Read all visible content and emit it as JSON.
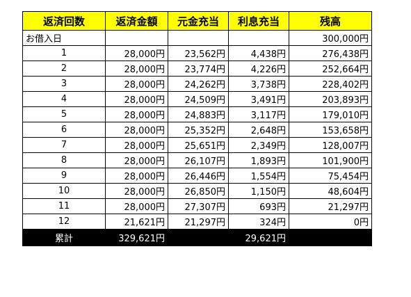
{
  "headers": {
    "count": "返済回数",
    "payment": "返済金額",
    "principal": "元金充当",
    "interest": "利息充当",
    "balance": "残高"
  },
  "borrow_row": {
    "label": "お借入日",
    "payment": "",
    "principal": "",
    "interest": "",
    "balance": "300,000円"
  },
  "rows": [
    {
      "n": "1",
      "payment": "28,000円",
      "principal": "23,562円",
      "interest": "4,438円",
      "balance": "276,438円"
    },
    {
      "n": "2",
      "payment": "28,000円",
      "principal": "23,774円",
      "interest": "4,226円",
      "balance": "252,664円"
    },
    {
      "n": "3",
      "payment": "28,000円",
      "principal": "24,262円",
      "interest": "3,738円",
      "balance": "228,402円"
    },
    {
      "n": "4",
      "payment": "28,000円",
      "principal": "24,509円",
      "interest": "3,491円",
      "balance": "203,893円"
    },
    {
      "n": "5",
      "payment": "28,000円",
      "principal": "24,883円",
      "interest": "3,117円",
      "balance": "179,010円"
    },
    {
      "n": "6",
      "payment": "28,000円",
      "principal": "25,352円",
      "interest": "2,648円",
      "balance": "153,658円"
    },
    {
      "n": "7",
      "payment": "28,000円",
      "principal": "25,651円",
      "interest": "2,349円",
      "balance": "128,007円"
    },
    {
      "n": "8",
      "payment": "28,000円",
      "principal": "26,107円",
      "interest": "1,893円",
      "balance": "101,900円"
    },
    {
      "n": "9",
      "payment": "28,000円",
      "principal": "26,446円",
      "interest": "1,554円",
      "balance": "75,454円"
    },
    {
      "n": "10",
      "payment": "28,000円",
      "principal": "26,850円",
      "interest": "1,150円",
      "balance": "48,604円"
    },
    {
      "n": "11",
      "payment": "28,000円",
      "principal": "27,307円",
      "interest": "693円",
      "balance": "21,297円"
    },
    {
      "n": "12",
      "payment": "21,621円",
      "principal": "21,297円",
      "interest": "324円",
      "balance": "0円"
    }
  ],
  "total_row": {
    "label": "累計",
    "payment": "329,621円",
    "principal": "",
    "interest": "29,621円",
    "balance": ""
  },
  "colors": {
    "header_bg": "#ffff00",
    "total_bg": "#000000",
    "total_text": "#ffffff"
  }
}
